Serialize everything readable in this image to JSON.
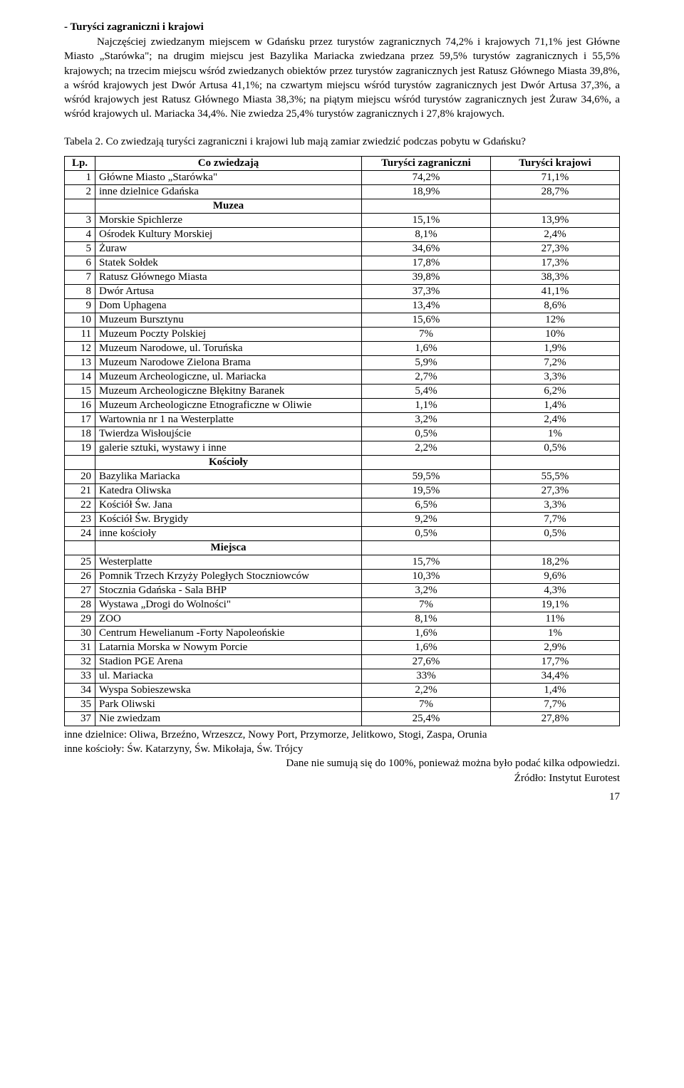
{
  "section_title": "- Turyści zagraniczni i krajowi",
  "body_text": "Najczęściej zwiedzanym miejscem w Gdańsku przez turystów zagranicznych 74,2% i krajowych 71,1% jest Główne Miasto „Starówka\"; na drugim miejscu jest Bazylika Mariacka zwiedzana przez 59,5% turystów zagranicznych i 55,5% krajowych; na trzecim miejscu wśród zwiedzanych obiektów przez turystów zagranicznych jest Ratusz Głównego Miasta 39,8%, a wśród krajowych jest Dwór Artusa 41,1%; na czwartym miejscu wśród turystów zagranicznych jest Dwór Artusa 37,3%, a wśród krajowych jest Ratusz Głównego Miasta 38,3%; na piątym miejscu wśród turystów zagranicznych jest Żuraw 34,6%, a wśród krajowych ul. Mariacka 34,4%. Nie zwiedza 25,4% turystów zagranicznych i 27,8% krajowych.",
  "table_title": "Tabela 2. Co zwiedzają turyści zagraniczni i krajowi lub mają zamiar zwiedzić podczas pobytu w  Gdańsku?",
  "table": {
    "columns": [
      "Lp.",
      "Co zwiedzają",
      "Turyści zagraniczni",
      "Turyści krajowi"
    ],
    "rows": [
      {
        "lp": "1",
        "name": "Główne Miasto „Starówka\"",
        "v1": "74,2%",
        "v2": "71,1%"
      },
      {
        "lp": "2",
        "name": "inne dzielnice Gdańska",
        "v1": "18,9%",
        "v2": "28,7%"
      },
      {
        "section": "Muzea"
      },
      {
        "lp": "3",
        "name": "Morskie Spichlerze",
        "v1": "15,1%",
        "v2": "13,9%"
      },
      {
        "lp": "4",
        "name": "Ośrodek Kultury Morskiej",
        "v1": "8,1%",
        "v2": "2,4%"
      },
      {
        "lp": "5",
        "name": "Żuraw",
        "v1": "34,6%",
        "v2": "27,3%"
      },
      {
        "lp": "6",
        "name": "Statek Sołdek",
        "v1": "17,8%",
        "v2": "17,3%"
      },
      {
        "lp": "7",
        "name": "Ratusz Głównego Miasta",
        "v1": "39,8%",
        "v2": "38,3%"
      },
      {
        "lp": "8",
        "name": "Dwór Artusa",
        "v1": "37,3%",
        "v2": "41,1%"
      },
      {
        "lp": "9",
        "name": "Dom Uphagena",
        "v1": "13,4%",
        "v2": "8,6%"
      },
      {
        "lp": "10",
        "name": "Muzeum Bursztynu",
        "v1": "15,6%",
        "v2": "12%"
      },
      {
        "lp": "11",
        "name": "Muzeum Poczty Polskiej",
        "v1": "7%",
        "v2": "10%"
      },
      {
        "lp": "12",
        "name": "Muzeum Narodowe, ul. Toruńska",
        "v1": "1,6%",
        "v2": "1,9%"
      },
      {
        "lp": "13",
        "name": "Muzeum Narodowe Zielona Brama",
        "v1": "5,9%",
        "v2": "7,2%"
      },
      {
        "lp": "14",
        "name": "Muzeum Archeologiczne, ul. Mariacka",
        "v1": "2,7%",
        "v2": "3,3%"
      },
      {
        "lp": "15",
        "name": "Muzeum Archeologiczne Błękitny Baranek",
        "v1": "5,4%",
        "v2": "6,2%"
      },
      {
        "lp": "16",
        "name": "Muzeum Archeologiczne Etnograficzne w Oliwie",
        "v1": "1,1%",
        "v2": "1,4%"
      },
      {
        "lp": "17",
        "name": "Wartownia nr 1 na Westerplatte",
        "v1": "3,2%",
        "v2": "2,4%"
      },
      {
        "lp": "18",
        "name": "Twierdza Wisłoujście",
        "v1": "0,5%",
        "v2": "1%"
      },
      {
        "lp": "19",
        "name": "galerie sztuki, wystawy i  inne",
        "v1": "2,2%",
        "v2": "0,5%"
      },
      {
        "section": "Kościoły"
      },
      {
        "lp": "20",
        "name": "Bazylika Mariacka",
        "v1": "59,5%",
        "v2": "55,5%"
      },
      {
        "lp": "21",
        "name": "Katedra Oliwska",
        "v1": "19,5%",
        "v2": "27,3%"
      },
      {
        "lp": "22",
        "name": "Kościół Św. Jana",
        "v1": "6,5%",
        "v2": "3,3%"
      },
      {
        "lp": "23",
        "name": "Kościół Św. Brygidy",
        "v1": "9,2%",
        "v2": "7,7%"
      },
      {
        "lp": "24",
        "name": "inne kościoły",
        "v1": "0,5%",
        "v2": "0,5%"
      },
      {
        "section": "Miejsca"
      },
      {
        "lp": "25",
        "name": "Westerplatte",
        "v1": "15,7%",
        "v2": "18,2%"
      },
      {
        "lp": "26",
        "name": "Pomnik Trzech Krzyży Poległych Stoczniowców",
        "v1": "10,3%",
        "v2": "9,6%"
      },
      {
        "lp": "27",
        "name": "Stocznia Gdańska - Sala BHP",
        "v1": "3,2%",
        "v2": "4,3%"
      },
      {
        "lp": "28",
        "name": "Wystawa „Drogi do Wolności\"",
        "v1": "7%",
        "v2": "19,1%"
      },
      {
        "lp": "29",
        "name": "ZOO",
        "v1": "8,1%",
        "v2": "11%"
      },
      {
        "lp": "30",
        "name": "Centrum Hewelianum -Forty Napoleońskie",
        "v1": "1,6%",
        "v2": "1%"
      },
      {
        "lp": "31",
        "name": "Latarnia Morska w Nowym  Porcie",
        "v1": "1,6%",
        "v2": "2,9%"
      },
      {
        "lp": "32",
        "name": "Stadion PGE Arena",
        "v1": "27,6%",
        "v2": "17,7%"
      },
      {
        "lp": "33",
        "name": "ul. Mariacka",
        "v1": "33%",
        "v2": "34,4%"
      },
      {
        "lp": "34",
        "name": "Wyspa Sobieszewska",
        "v1": "2,2%",
        "v2": "1,4%"
      },
      {
        "lp": "35",
        "name": "Park Oliwski",
        "v1": "7%",
        "v2": "7,7%"
      },
      {
        "lp": "37",
        "name": "Nie zwiedzam",
        "v1": "25,4%",
        "v2": "27,8%"
      }
    ]
  },
  "footer": {
    "note1": "inne dzielnice: Oliwa, Brzeźno, Wrzeszcz, Nowy Port, Przymorze, Jelitkowo, Stogi, Zaspa, Orunia",
    "note2": "inne kościoły: Św. Katarzyny, Św. Mikołaja, Św. Trójcy",
    "note3": "Dane nie sumują się do 100%, ponieważ można było podać kilka odpowiedzi.",
    "source": "Źródło: Instytut Eurotest"
  },
  "page_number": "17"
}
